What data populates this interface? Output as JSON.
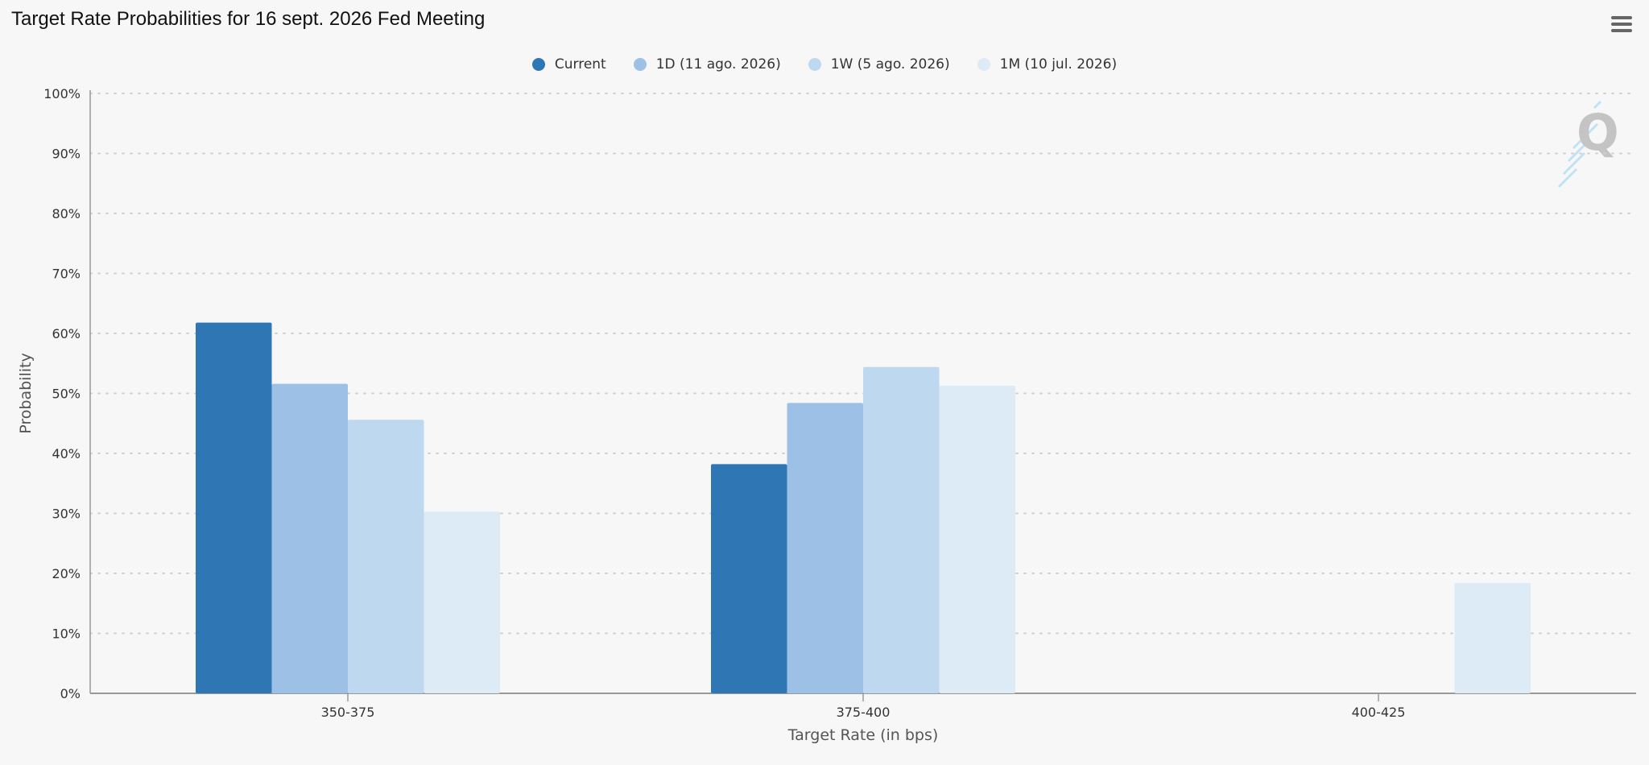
{
  "header": {
    "title": "Target Rate Probabilities for 16 sept. 2026 Fed Meeting",
    "menu_icon": "hamburger-menu-icon",
    "watermark_letter": "Q"
  },
  "colors": {
    "background": "#f7f7f7",
    "axis": "#999999",
    "gridline": "#d0d0d0"
  },
  "chart_data": {
    "type": "bar",
    "title": "Target Rate Probabilities for 16 sept. 2026 Fed Meeting",
    "xlabel": "Target Rate (in bps)",
    "ylabel": "Probability",
    "categories": [
      "350-375",
      "375-400",
      "400-425"
    ],
    "ylim": [
      0,
      100
    ],
    "yticks": [
      "0%",
      "10%",
      "20%",
      "30%",
      "40%",
      "50%",
      "60%",
      "70%",
      "80%",
      "90%",
      "100%"
    ],
    "grid": true,
    "legend_position": "top-center",
    "series": [
      {
        "name": "Current",
        "color": "#2f76b4",
        "values": [
          61.8,
          38.2,
          0
        ]
      },
      {
        "name": "1D (11 ago. 2026)",
        "color": "#9dc1e6",
        "values": [
          51.6,
          48.4,
          0
        ]
      },
      {
        "name": "1W (5 ago. 2026)",
        "color": "#bed8ef",
        "values": [
          45.6,
          54.4,
          0
        ]
      },
      {
        "name": "1M (10 jul. 2026)",
        "color": "#ddebf7",
        "values": [
          30.3,
          51.3,
          18.4
        ]
      }
    ]
  }
}
